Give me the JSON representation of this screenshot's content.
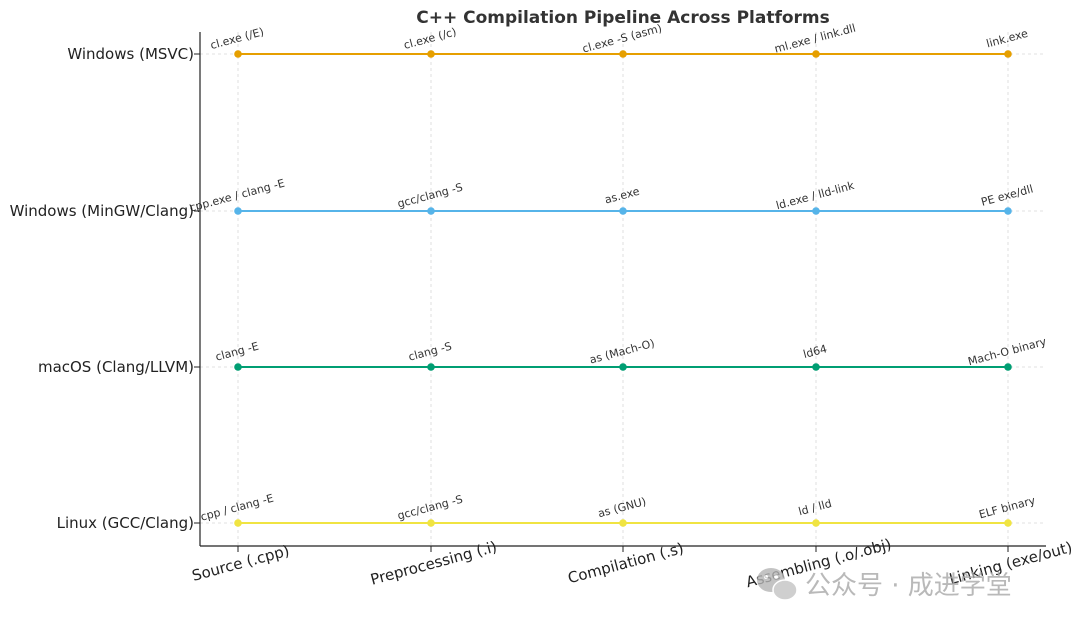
{
  "chart_data": {
    "type": "line",
    "title": "C++ Compilation Pipeline Across Platforms",
    "xlabel": "",
    "ylabel": "",
    "categories": [
      "Source (.cpp)",
      "Preprocessing (.i)",
      "Compilation (.s)",
      "Assembling (.o/.obj)",
      "Linking (exe/out)"
    ],
    "grid": true,
    "legend": "none",
    "series": [
      {
        "name": "Windows (MSVC)",
        "color": "#E69F00",
        "labels": [
          "cl.exe (/E)",
          "cl.exe (/c)",
          "cl.exe -S (asm)",
          "ml.exe / link.dll",
          "link.exe"
        ]
      },
      {
        "name": "Windows (MinGW/Clang)",
        "color": "#56B4E9",
        "labels": [
          "cpp.exe / clang -E",
          "gcc/clang -S",
          "as.exe",
          "ld.exe / lld-link",
          "PE exe/dll"
        ]
      },
      {
        "name": "macOS (Clang/LLVM)",
        "color": "#009E73",
        "labels": [
          "clang -E",
          "clang -S",
          "as (Mach-O)",
          "ld64",
          "Mach-O binary"
        ]
      },
      {
        "name": "Linux (GCC/Clang)",
        "color": "#F0E442",
        "labels": [
          "cpp / clang -E",
          "gcc/clang -S",
          "as (GNU)",
          "ld / lld",
          "ELF binary"
        ]
      }
    ]
  },
  "watermark": {
    "icon": "wechat-icon",
    "text": "公众号 · 成进学堂"
  }
}
